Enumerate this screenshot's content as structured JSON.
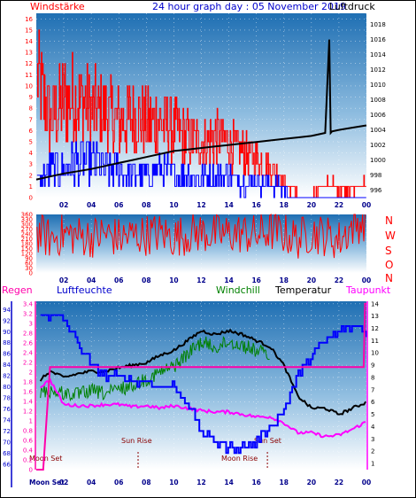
{
  "header": {
    "left_label": "Windstärke",
    "title": "24 hour graph day : 05 November 2019",
    "right_label": "Luftdruck"
  },
  "compass_letters": [
    "N",
    "W",
    "S",
    "O",
    "N"
  ],
  "bottom_headers": {
    "regen": "Regen",
    "luftfeuchte": "Luftfeuchte",
    "windchill": "Windchill",
    "temperatur": "Temperatur",
    "taupunkt": "Taupunkt"
  },
  "annotations": {
    "moon_set_top": "Moon Set",
    "sun_rise": "Sun Rise",
    "sun_set": "Sun Set",
    "moon_rise": "Moon Rise",
    "moon_set_axis": "Moon Set"
  },
  "colors": {
    "wind_gust": "#ff0000",
    "wind_avg": "#0000ff",
    "pressure": "#000000",
    "direction": "#ff0000",
    "humidity": "#0000ff",
    "windchill": "#008000",
    "temperature": "#000000",
    "dewpoint": "#ff00ff",
    "rain": "#ff00aa"
  },
  "chart_data": [
    {
      "type": "line",
      "title": "24 hour graph day : 05 November 2019",
      "x_ticks": [
        "02",
        "04",
        "06",
        "08",
        "10",
        "12",
        "14",
        "16",
        "18",
        "20",
        "22",
        "00"
      ],
      "y_left_label": "Windstärke",
      "y_left_ticks": [
        0,
        1,
        2,
        3,
        4,
        5,
        6,
        7,
        8,
        9,
        10,
        11,
        12,
        13,
        14,
        15,
        16
      ],
      "y_left_range": [
        0,
        16.5
      ],
      "y_right_label": "Luftdruck",
      "y_right_ticks": [
        996,
        998,
        1000,
        1002,
        1004,
        1006,
        1008,
        1010,
        1012,
        1014,
        1016,
        1018
      ],
      "y_right_range": [
        995,
        1019.5
      ],
      "series": [
        {
          "name": "gust",
          "axis": "left",
          "x": [
            0.1,
            1.0,
            2.0,
            3.0,
            4.0,
            5.0,
            6.0,
            7.0,
            8.0,
            9.0,
            10.0,
            11.0,
            12.0,
            13.0,
            14.0,
            15.0,
            16.0,
            17.0,
            18.0,
            18.5,
            19.5,
            20.5,
            21.5,
            22.0,
            23.0,
            23.9
          ],
          "values": [
            16,
            10,
            13,
            13,
            12,
            11,
            10,
            11,
            10,
            10,
            9,
            8,
            7,
            8,
            7,
            6,
            5,
            4,
            2,
            1,
            0,
            1,
            2,
            1,
            1,
            2
          ]
        },
        {
          "name": "average",
          "axis": "left",
          "x": [
            0.1,
            1.0,
            2.0,
            3.0,
            4.0,
            5.0,
            6.0,
            7.0,
            8.0,
            9.0,
            10.0,
            11.0,
            12.0,
            13.0,
            14.0,
            15.0,
            16.0,
            17.0,
            18.0,
            19.0,
            20.0,
            21.0,
            22.0,
            23.0,
            23.9
          ],
          "values": [
            2,
            4,
            4,
            5,
            5,
            4,
            4,
            3,
            3,
            4,
            3,
            3,
            3,
            3,
            3,
            2,
            2,
            2,
            1,
            0,
            0,
            0,
            0,
            0,
            0
          ]
        },
        {
          "name": "pressure",
          "axis": "right",
          "x": [
            0,
            1,
            2,
            3,
            4,
            5,
            6,
            7,
            8,
            9,
            10,
            11,
            12,
            13,
            14,
            15,
            16,
            17,
            18,
            19,
            20,
            21,
            21.3,
            21.4,
            21.5,
            22,
            23,
            24
          ],
          "values": [
            997.4,
            997.8,
            998.2,
            998.5,
            998.8,
            999.2,
            999.6,
            1000.0,
            1000.4,
            1000.8,
            1001.2,
            1001.4,
            1001.6,
            1001.8,
            1002.0,
            1002.2,
            1002.4,
            1002.6,
            1002.8,
            1003.0,
            1003.2,
            1003.6,
            1016.0,
            1003.6,
            1003.8,
            1004.0,
            1004.3,
            1004.6
          ]
        }
      ]
    },
    {
      "type": "scatter",
      "title": "",
      "x_ticks": [
        "02",
        "04",
        "06",
        "08",
        "10",
        "12",
        "14",
        "16",
        "18",
        "20",
        "22",
        "00"
      ],
      "y_ticks": [
        0,
        30,
        60,
        90,
        120,
        150,
        180,
        210,
        240,
        270,
        300,
        330,
        360
      ],
      "y_range": [
        0,
        360
      ],
      "right_labels": [
        "N",
        "W",
        "S",
        "O",
        "N"
      ],
      "series": [
        {
          "name": "direction",
          "x": [
            0,
            1,
            2,
            3,
            4,
            5,
            6,
            7,
            8,
            9,
            10,
            11,
            12,
            13,
            14,
            15,
            16,
            17,
            18,
            19,
            20,
            21,
            22,
            23,
            24
          ],
          "values": [
            250,
            210,
            240,
            230,
            220,
            240,
            215,
            230,
            235,
            245,
            220,
            240,
            250,
            235,
            240,
            245,
            230,
            260,
            240,
            210,
            250,
            230,
            200,
            290,
            330
          ]
        }
      ]
    },
    {
      "type": "line",
      "title": "",
      "x_ticks": [
        "Moon Set",
        "02",
        "04",
        "06",
        "08",
        "10",
        "12",
        "14",
        "16",
        "18",
        "20",
        "22",
        "00"
      ],
      "y_left_ticks_humidity": [
        66,
        68,
        70,
        72,
        74,
        76,
        78,
        80,
        82,
        84,
        86,
        88,
        90,
        92,
        94
      ],
      "y_left_ticks_rain": [
        0,
        0.2,
        0.4,
        0.6,
        0.8,
        1,
        1.2,
        1.4,
        1.6,
        1.8,
        2,
        2.2,
        2.4,
        2.6,
        2.8,
        3,
        3.2,
        3.4
      ],
      "y_right_ticks": [
        1,
        2,
        3,
        4,
        5,
        6,
        7,
        8,
        9,
        10,
        11,
        12,
        13,
        14
      ],
      "y_right_range": [
        0.5,
        14.2
      ],
      "series": [
        {
          "name": "humidity",
          "unit": "%",
          "x": [
            0,
            1,
            2,
            3,
            4,
            5,
            6,
            7,
            8,
            9,
            10,
            11,
            12,
            13,
            14,
            15,
            16,
            17,
            18,
            19,
            20,
            21,
            22,
            23,
            23.5,
            24
          ],
          "values": [
            93,
            93,
            92,
            88,
            84,
            82,
            82,
            81,
            81,
            80,
            80,
            77,
            72,
            70,
            69,
            69,
            70,
            73,
            76,
            82,
            86,
            88,
            90,
            91,
            91,
            90
          ]
        },
        {
          "name": "temperature",
          "unit": "°C",
          "x": [
            0,
            1,
            2,
            3,
            4,
            5,
            6,
            7,
            8,
            9,
            10,
            11,
            12,
            13,
            14,
            15,
            16,
            17,
            18,
            19,
            20,
            21,
            22,
            23,
            24
          ],
          "values": [
            7.5,
            8.5,
            8.0,
            8.3,
            8.5,
            8.5,
            8.8,
            9.0,
            9.2,
            9.8,
            10.2,
            11.0,
            11.8,
            11.5,
            11.8,
            11.5,
            11.0,
            10.5,
            9.0,
            6.5,
            5.5,
            5.5,
            5.0,
            5.5,
            6.0
          ]
        },
        {
          "name": "windchill",
          "unit": "°C",
          "x": [
            0,
            1,
            2,
            3,
            4,
            5,
            6,
            7,
            8,
            9,
            10,
            11,
            12,
            13,
            14,
            15,
            16,
            17
          ],
          "values": [
            7.5,
            7.5,
            7.3,
            7.2,
            7.5,
            7.3,
            7.6,
            8.0,
            8.5,
            9.0,
            9.5,
            10.5,
            11.5,
            11.0,
            11.5,
            11.2,
            10.8,
            10.4
          ]
        },
        {
          "name": "dewpoint",
          "unit": "°C",
          "x": [
            0,
            1,
            2,
            3,
            4,
            5,
            6,
            7,
            8,
            9,
            10,
            11,
            12,
            13,
            14,
            15,
            16,
            17,
            18,
            19,
            20,
            21,
            22,
            23,
            24
          ],
          "values": [
            7.0,
            7.8,
            5.8,
            5.7,
            5.7,
            5.8,
            5.8,
            5.6,
            5.7,
            5.5,
            5.7,
            5.5,
            5.3,
            5.2,
            5.2,
            5.0,
            4.8,
            4.8,
            4.3,
            3.5,
            3.5,
            3.2,
            3.3,
            3.8,
            4.4
          ]
        },
        {
          "name": "rain",
          "unit": "mm",
          "x": [
            0,
            0.5,
            1.0,
            1.05,
            20,
            23.8,
            23.9,
            24
          ],
          "values": [
            0,
            0,
            2.1,
            2.1,
            2.1,
            2.1,
            3.4,
            3.4
          ]
        }
      ]
    }
  ]
}
